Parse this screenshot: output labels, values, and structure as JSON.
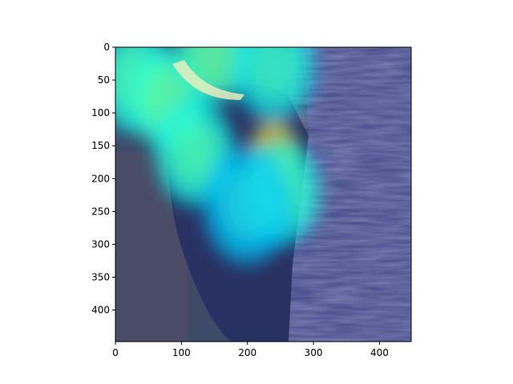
{
  "chart_data": {
    "type": "heatmap",
    "title": "",
    "xlabel": "",
    "ylabel": "",
    "xlim": [
      0,
      448
    ],
    "ylim": [
      448,
      0
    ],
    "x_ticks": [
      0,
      100,
      200,
      300,
      400
    ],
    "y_ticks": [
      0,
      50,
      100,
      150,
      200,
      250,
      300,
      350,
      400
    ],
    "x_tick_labels": [
      "0",
      "100",
      "200",
      "300",
      "400"
    ],
    "y_tick_labels": [
      "0",
      "50",
      "100",
      "150",
      "200",
      "250",
      "300",
      "350",
      "400"
    ],
    "grid": false,
    "colormap": "jet",
    "heat_blobs": [
      {
        "x": 240,
        "y": 160,
        "intensity": 1.0
      },
      {
        "x": 30,
        "y": 50,
        "intensity": 0.5
      },
      {
        "x": 80,
        "y": 80,
        "intensity": 0.55
      },
      {
        "x": 150,
        "y": 10,
        "intensity": 0.55
      },
      {
        "x": 240,
        "y": 30,
        "intensity": 0.45
      },
      {
        "x": 250,
        "y": 220,
        "intensity": 0.5
      },
      {
        "x": 120,
        "y": 160,
        "intensity": 0.5
      },
      {
        "x": 200,
        "y": 240,
        "intensity": 0.35
      }
    ],
    "colors": {
      "tree_bark": "#4a4e86",
      "sky_background": "#4a4b6a",
      "woodpecker_body": "#2a3050",
      "cold": "#1e2a9a"
    }
  }
}
